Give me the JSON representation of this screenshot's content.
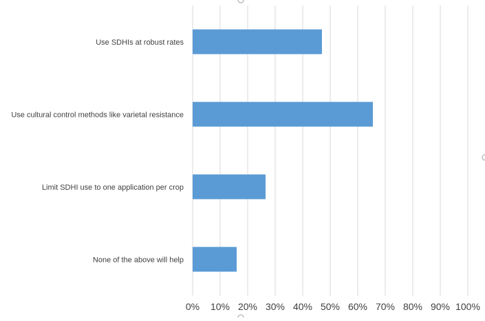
{
  "chart_data": {
    "type": "bar",
    "orientation": "horizontal",
    "title": "",
    "xlabel": "",
    "ylabel": "",
    "categories": [
      "Use SDHIs at robust rates",
      "Use cultural control methods like varietal resistance",
      "Limit SDHI use to one application per crop",
      "None of the above will help"
    ],
    "values": [
      47,
      65.5,
      26.5,
      16
    ],
    "xlim": [
      0,
      100
    ],
    "x_ticks": [
      "0%",
      "10%",
      "20%",
      "30%",
      "40%",
      "50%",
      "60%",
      "70%",
      "80%",
      "90%",
      "100%"
    ],
    "grid": true,
    "legend": "none",
    "bar_color": "#5b9bd5"
  }
}
